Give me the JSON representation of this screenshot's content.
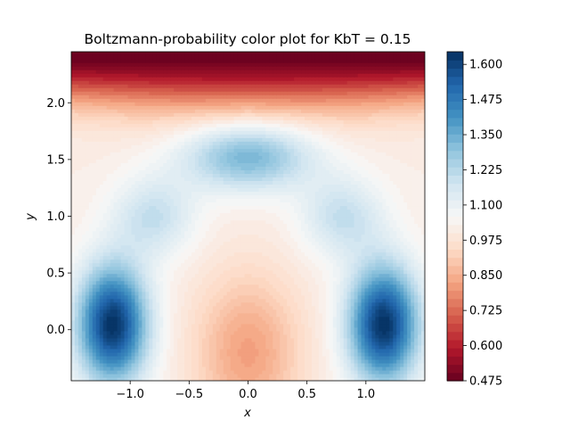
{
  "chart_data": {
    "type": "heatmap",
    "subtype": "filled-contour",
    "title": "Boltzmann-probability color plot for KbT = 0.15",
    "xlabel": "x",
    "ylabel": "y",
    "xlim": [
      -1.5,
      1.5
    ],
    "ylim": [
      -0.45,
      2.45
    ],
    "x_ticks": [
      -1.0,
      -0.5,
      0.0,
      0.5,
      1.0
    ],
    "x_tick_labels": [
      "−1.0",
      "−0.5",
      "0.0",
      "0.5",
      "1.0"
    ],
    "y_ticks": [
      0.0,
      0.5,
      1.0,
      1.5,
      2.0
    ],
    "y_tick_labels": [
      "0.0",
      "0.5",
      "1.0",
      "1.5",
      "2.0"
    ],
    "colormap": "RdBu",
    "colorbar": {
      "min": 0.475,
      "max": 1.645,
      "ticks": [
        0.475,
        0.6,
        0.725,
        0.85,
        0.975,
        1.1,
        1.225,
        1.35,
        1.475,
        1.6
      ],
      "tick_labels": [
        "0.475",
        "0.600",
        "0.725",
        "0.850",
        "0.975",
        "1.100",
        "1.225",
        "1.350",
        "1.475",
        "1.600"
      ],
      "colors": [
        "#67001f",
        "#b2182b",
        "#d6604d",
        "#f4a582",
        "#fddbc7",
        "#f7f7f7",
        "#d1e5f0",
        "#92c5de",
        "#4393c3",
        "#2166ac",
        "#053061"
      ]
    },
    "features": [
      {
        "kind": "maximum",
        "x": -1.15,
        "y": 0.05,
        "value": 1.64
      },
      {
        "kind": "maximum",
        "x": 1.15,
        "y": 0.05,
        "value": 1.64
      },
      {
        "kind": "maximum",
        "x": 0.0,
        "y": 1.53,
        "value": 1.42
      },
      {
        "kind": "minimum",
        "x": 0.0,
        "y": -0.2,
        "value": 0.84
      },
      {
        "kind": "minimum",
        "x": 0.0,
        "y": 2.45,
        "value": 0.49
      }
    ]
  }
}
